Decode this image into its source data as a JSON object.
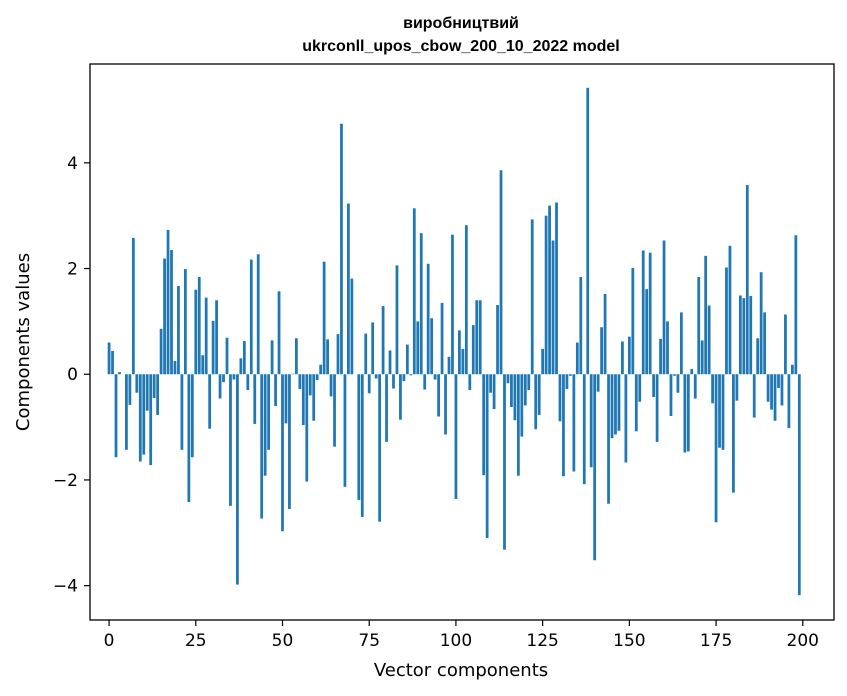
{
  "chart_data": {
    "type": "bar",
    "title_line1": "виробництвий",
    "title_line2": "ukrconll_upos_cbow_200_10_2022 model",
    "xlabel": "Vector components",
    "ylabel": "Components values",
    "xlim": [
      -5.5,
      209
    ],
    "ylim": [
      -4.65,
      5.87
    ],
    "x_ticks": [
      0,
      25,
      50,
      75,
      100,
      125,
      150,
      175,
      200
    ],
    "y_ticks": [
      -4,
      -2,
      0,
      2,
      4
    ],
    "grid": false,
    "color": "#1f77b4",
    "values": [
      0.6,
      0.44,
      -1.57,
      0.04,
      0.0,
      -1.43,
      -0.58,
      2.58,
      -0.35,
      -1.65,
      -1.52,
      -0.69,
      -1.72,
      -0.45,
      -0.77,
      0.86,
      2.19,
      2.73,
      2.35,
      0.25,
      1.67,
      -1.43,
      1.99,
      -2.42,
      -1.57,
      1.6,
      1.84,
      0.36,
      1.45,
      -1.03,
      1.01,
      1.4,
      -0.46,
      -0.15,
      0.69,
      -2.49,
      -0.1,
      -3.98,
      0.3,
      0.63,
      -0.3,
      2.17,
      -0.94,
      2.27,
      -2.73,
      -1.92,
      -1.43,
      0.64,
      -0.6,
      1.57,
      -2.97,
      -0.93,
      -2.55,
      0.01,
      0.68,
      -0.28,
      -0.96,
      -2.03,
      -0.4,
      -0.88,
      -0.11,
      0.18,
      2.13,
      0.66,
      -0.42,
      -1.37,
      0.76,
      4.74,
      -2.13,
      3.23,
      1.81,
      0.0,
      -2.38,
      -2.7,
      0.77,
      -0.36,
      0.98,
      -0.08,
      -2.79,
      1.29,
      -1.28,
      0.45,
      -0.27,
      2.06,
      -0.86,
      -0.13,
      0.56,
      -0.02,
      3.14,
      1.0,
      2.67,
      -0.29,
      2.09,
      1.06,
      -0.1,
      -0.8,
      1.35,
      -1.14,
      0.33,
      2.64,
      -2.36,
      0.83,
      0.48,
      2.82,
      -0.3,
      0.93,
      1.4,
      1.4,
      -1.91,
      -3.1,
      -0.35,
      -0.66,
      1.31,
      3.86,
      -3.32,
      -0.17,
      -0.62,
      -0.87,
      -1.92,
      -1.18,
      -0.59,
      -0.3,
      2.93,
      -1.04,
      -0.77,
      0.48,
      3.0,
      3.19,
      2.53,
      3.25,
      -0.89,
      -1.93,
      -0.28,
      -0.03,
      -1.84,
      0.6,
      1.84,
      -2.08,
      5.42,
      -1.76,
      -3.52,
      -0.33,
      0.89,
      1.52,
      -2.45,
      -1.21,
      -1.14,
      -1.07,
      0.62,
      -1.67,
      0.71,
      2.01,
      -1.08,
      -0.52,
      2.34,
      1.61,
      2.3,
      -0.43,
      -1.28,
      0.67,
      2.53,
      1.0,
      -0.79,
      -0.03,
      -0.35,
      1.17,
      -1.48,
      -1.46,
      0.1,
      -0.46,
      1.84,
      0.64,
      2.24,
      1.3,
      -0.55,
      -2.8,
      -1.39,
      -1.43,
      2.02,
      2.43,
      -2.24,
      -0.5,
      1.49,
      1.44,
      3.58,
      1.48,
      -0.82,
      0.68,
      1.93,
      1.17,
      -0.52,
      -0.67,
      -0.88,
      -0.26,
      -0.59,
      1.13,
      -1.02,
      0.18,
      2.63,
      -4.18
    ]
  }
}
